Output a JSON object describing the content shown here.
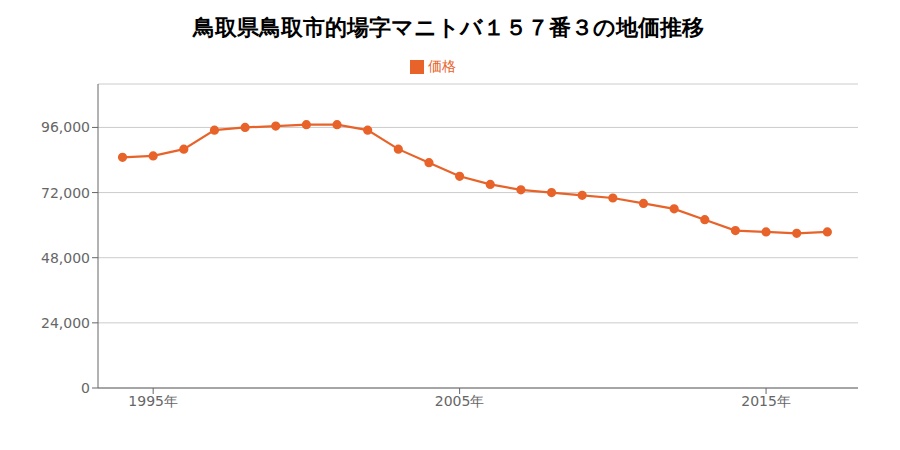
{
  "chart_data": {
    "type": "line",
    "title": "鳥取県鳥取市的場字マニトバ１５７番３の地価推移",
    "x": [
      1994,
      1995,
      1996,
      1997,
      1998,
      1999,
      2000,
      2001,
      2002,
      2003,
      2004,
      2005,
      2006,
      2007,
      2008,
      2009,
      2010,
      2011,
      2012,
      2013,
      2014,
      2015,
      2016,
      2017
    ],
    "series": [
      {
        "name": "価格",
        "color": "#e8632a",
        "marker": "circle",
        "values": [
          85000,
          85500,
          88000,
          95000,
          96000,
          96500,
          97000,
          97000,
          95000,
          88000,
          83000,
          78000,
          75000,
          73000,
          72000,
          71000,
          70000,
          68000,
          66000,
          62000,
          58000,
          57500,
          57000,
          57500
        ]
      }
    ],
    "xlim": [
      1993.2,
      2018.0
    ],
    "xticks": [
      {
        "value": 1995,
        "label": "1995年"
      },
      {
        "value": 2005,
        "label": "2005年"
      },
      {
        "value": 2015,
        "label": "2015年"
      }
    ],
    "ylim": [
      0,
      112000
    ],
    "yticks": [
      0,
      {
        "value": 24000,
        "label": "24,000"
      },
      {
        "value": 48000,
        "label": "48,000"
      },
      {
        "value": 72000,
        "label": "72,000"
      },
      {
        "value": 96000,
        "label": "96,000"
      }
    ],
    "grid": "y",
    "legend": "top"
  }
}
